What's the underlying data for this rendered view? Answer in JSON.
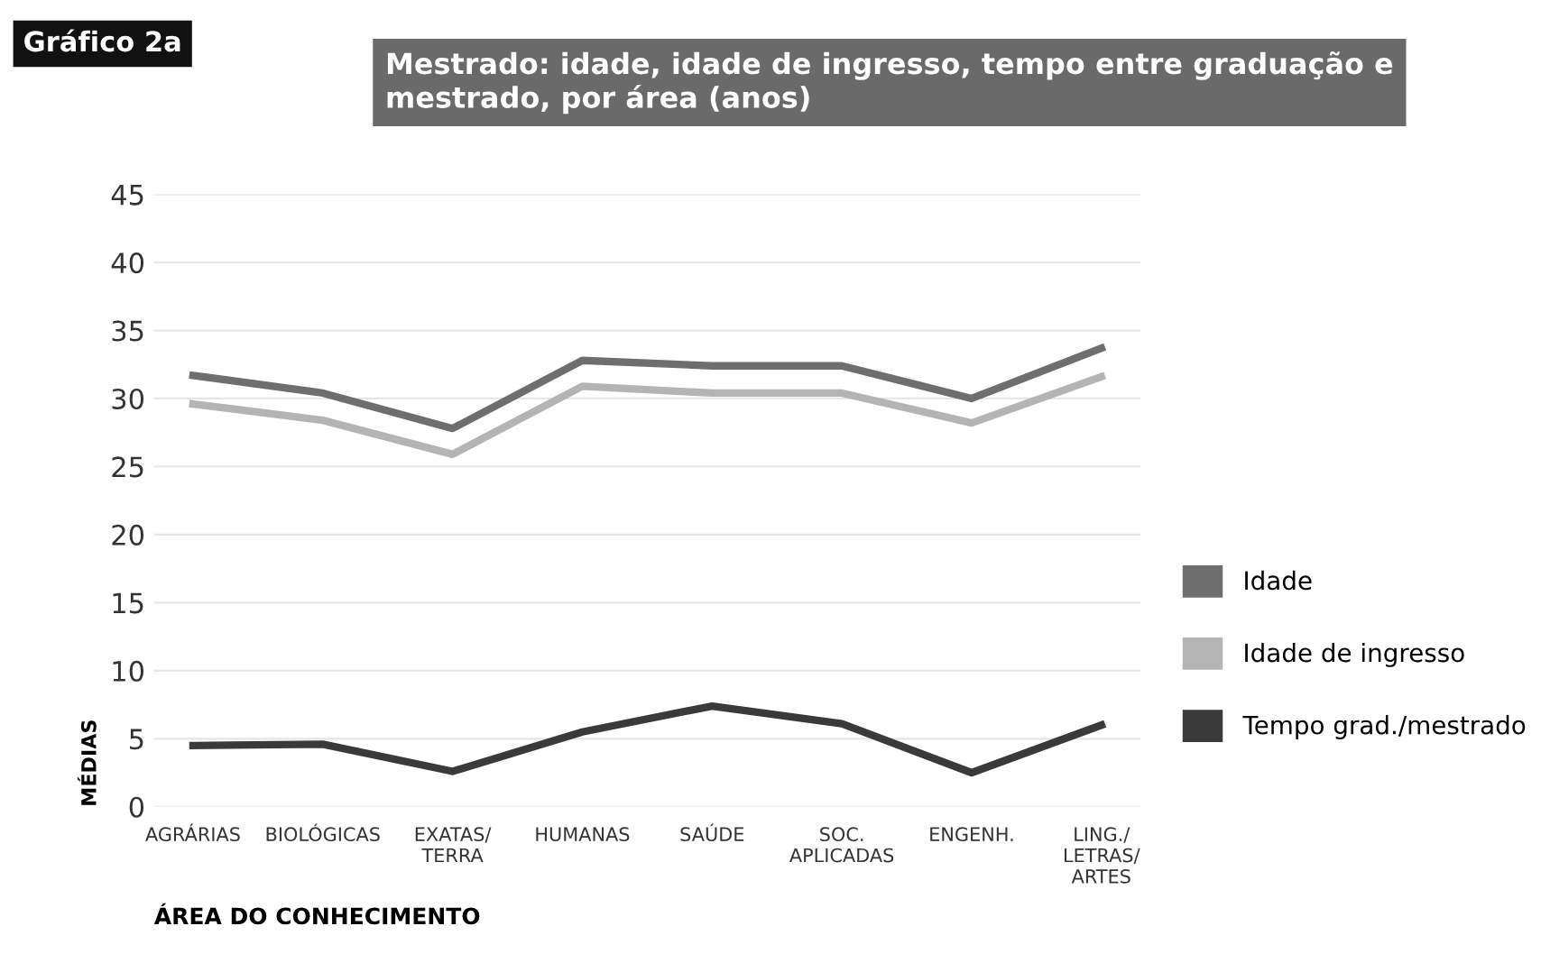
{
  "chart_data": {
    "type": "line",
    "title": "Mestrado: idade, idade de ingresso, tempo entre graduação e mestrado, por área (anos)",
    "annotations": [
      "Gráfico 2a"
    ],
    "xlabel": "ÁREA DO CONHECIMENTO",
    "ylabel": "MÉDIAS",
    "categories": [
      "AGRÁRIAS",
      "BIOLÓGICAS",
      "EXATAS/\nTERRA",
      "HUMANAS",
      "SAÚDE",
      "SOC.\nAPLICADAS",
      "ENGENH.",
      "LING./\nLETRAS/\nARTES"
    ],
    "series": [
      {
        "name": "Idade",
        "color": "#6e6e6e",
        "values": [
          31.7,
          30.4,
          27.8,
          32.8,
          32.4,
          32.4,
          30.0,
          33.7
        ]
      },
      {
        "name": "Idade de ingresso",
        "color": "#b4b4b4",
        "values": [
          29.6,
          28.4,
          25.9,
          30.9,
          30.4,
          30.4,
          28.2,
          31.6
        ]
      },
      {
        "name": "Tempo grad./mestrado",
        "color": "#3a3a3a",
        "values": [
          4.5,
          4.6,
          2.6,
          5.5,
          7.4,
          6.1,
          2.5,
          6.0
        ]
      }
    ],
    "ylim": [
      0,
      45
    ],
    "yticks": [
      0,
      5,
      10,
      15,
      20,
      25,
      30,
      35,
      40,
      45
    ],
    "grid": "y",
    "legend": "right",
    "marker": "none",
    "line_style": "solid"
  }
}
